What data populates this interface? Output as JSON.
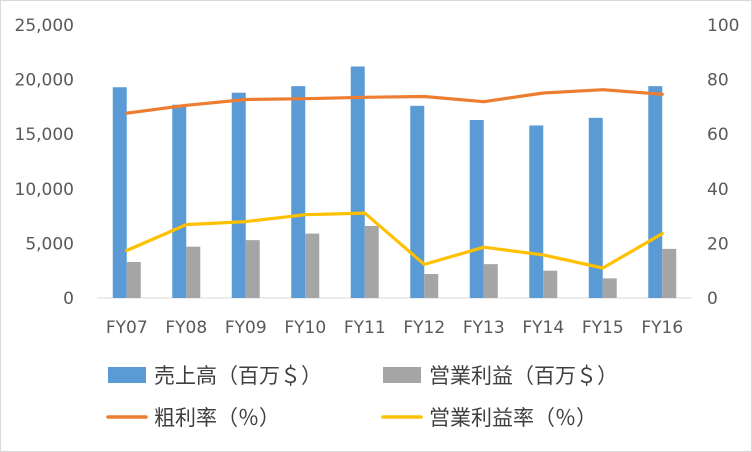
{
  "chart_data": {
    "type": "bar",
    "categories": [
      "FY07",
      "FY08",
      "FY09",
      "FY10",
      "FY11",
      "FY12",
      "FY13",
      "FY14",
      "FY15",
      "FY16"
    ],
    "bar_series": [
      {
        "name": "売上高（百万＄）",
        "color": "#5b9bd5",
        "values": [
          19300,
          17700,
          18800,
          19400,
          21200,
          17600,
          16300,
          15800,
          16500,
          19400
        ]
      },
      {
        "name": "営業利益（百万＄）",
        "color": "#a5a5a5",
        "values": [
          3300,
          4700,
          5300,
          5900,
          6600,
          2200,
          3100,
          2500,
          1800,
          4500
        ]
      }
    ],
    "line_series": [
      {
        "name": "粗利率（％）",
        "color": "#ed7d31",
        "values": [
          67.7,
          70.6,
          72.7,
          73.0,
          73.5,
          73.8,
          71.9,
          75.1,
          76.3,
          74.6
        ]
      },
      {
        "name": "営業利益率（％）",
        "color": "#ffc000",
        "values": [
          17.4,
          26.9,
          28.0,
          30.5,
          31.1,
          12.3,
          18.6,
          15.8,
          11.0,
          23.6
        ]
      }
    ],
    "y_left": {
      "min": 0,
      "max": 25000,
      "ticks": [
        "0",
        "5,000",
        "10,000",
        "15,000",
        "20,000",
        "25,000"
      ]
    },
    "y_right": {
      "min": 0,
      "max": 100,
      "ticks": [
        "0",
        "20",
        "40",
        "60",
        "80",
        "100"
      ]
    },
    "legend": [
      {
        "label": "売上高（百万＄）",
        "kind": "bar",
        "color": "#5b9bd5"
      },
      {
        "label": "営業利益（百万＄）",
        "kind": "bar",
        "color": "#a5a5a5"
      },
      {
        "label": "粗利率（％）",
        "kind": "line",
        "color": "#ed7d31"
      },
      {
        "label": "営業利益率（％）",
        "kind": "line",
        "color": "#ffc000"
      }
    ],
    "legend_position": "bottom",
    "grid": false
  }
}
